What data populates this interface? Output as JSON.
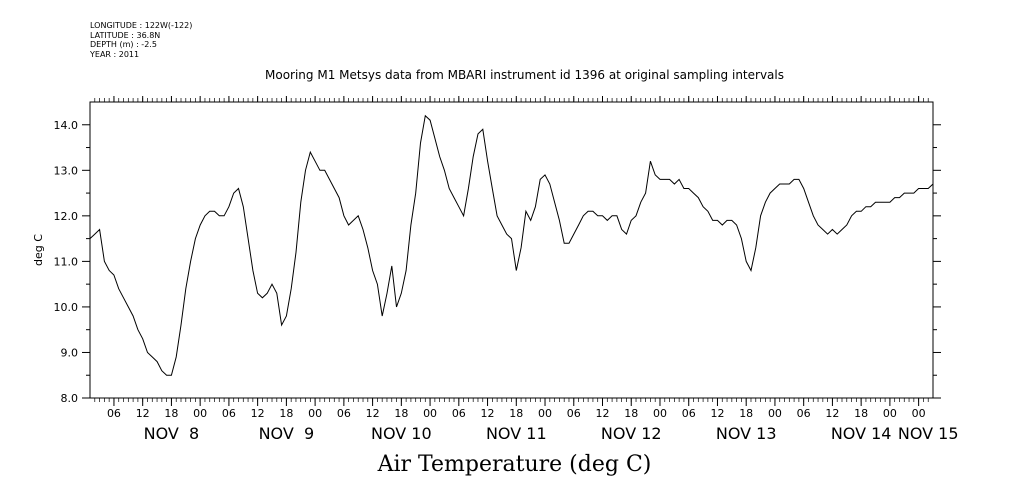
{
  "meta": {
    "longitude": "LONGITUDE : 122W(-122)",
    "latitude": "LATITUDE : 36.8N",
    "depth": "DEPTH (m) : -2.5",
    "year": "YEAR : 2011"
  },
  "chart_data": {
    "type": "line",
    "title": "Mooring M1 Metsys data from MBARI instrument id 1396 at original sampling intervals",
    "xlabel": "Air Temperature (deg C)",
    "ylabel": "deg C",
    "ylim": [
      8.0,
      14.5
    ],
    "yticks": [
      "8.0",
      "9.0",
      "10.0",
      "11.0",
      "12.0",
      "13.0",
      "14.0"
    ],
    "xlim_hours": [
      0,
      176
    ],
    "hour_tick_labels": [
      "06",
      "12",
      "18",
      "00",
      "06",
      "12",
      "18",
      "00",
      "06",
      "12",
      "18",
      "00",
      "06",
      "12",
      "18",
      "00",
      "06",
      "12",
      "18",
      "00",
      "06",
      "12",
      "18",
      "00",
      "06",
      "12",
      "18",
      "00",
      "00"
    ],
    "day_labels": [
      "NOV  8",
      "NOV  9",
      "NOV 10",
      "NOV 11",
      "NOV 12",
      "NOV 13",
      "NOV 14",
      "NOV 15"
    ],
    "grid": false,
    "series": [
      {
        "x": [
          0,
          1,
          2,
          3,
          4,
          5,
          6,
          7,
          8,
          9,
          10,
          11,
          12,
          13,
          14,
          15,
          16,
          17,
          18,
          19,
          20,
          21,
          22,
          23,
          24,
          25,
          26,
          27,
          28,
          29,
          30,
          31,
          32,
          33,
          34,
          35,
          36,
          37,
          38,
          39,
          40,
          41,
          42,
          43,
          44,
          45,
          46,
          47,
          48,
          49,
          50,
          51,
          52,
          53,
          54,
          55,
          56,
          57,
          58,
          59,
          60,
          61,
          62,
          63,
          64,
          65,
          66,
          67,
          68,
          69,
          70,
          71,
          72,
          73,
          74,
          75,
          76,
          77,
          78,
          79,
          80,
          81,
          82,
          83,
          84,
          85,
          86,
          87,
          88,
          89,
          90,
          91,
          92,
          93,
          94,
          95,
          96,
          97,
          98,
          99,
          100,
          101,
          102,
          103,
          104,
          105,
          106,
          107,
          108,
          109,
          110,
          111,
          112,
          113,
          114,
          115,
          116,
          117,
          118,
          119,
          120,
          121,
          122,
          123,
          124,
          125,
          126,
          127,
          128,
          129,
          130,
          131,
          132,
          133,
          134,
          135,
          136,
          137,
          138,
          139,
          140,
          141,
          142,
          143,
          144,
          145,
          146,
          147,
          148,
          149,
          150,
          151,
          152,
          153,
          154,
          155,
          156,
          157,
          158,
          159,
          160,
          161,
          162,
          163,
          164,
          165,
          166,
          167,
          168,
          169,
          170,
          171,
          172,
          173,
          174,
          175,
          176
        ],
        "y": [
          11.5,
          11.6,
          11.7,
          11.0,
          10.8,
          10.7,
          10.4,
          10.2,
          10.0,
          9.8,
          9.5,
          9.3,
          9.0,
          8.9,
          8.8,
          8.6,
          8.5,
          8.5,
          8.9,
          9.6,
          10.4,
          11.0,
          11.5,
          11.8,
          12.0,
          12.1,
          12.1,
          12.0,
          12.0,
          12.2,
          12.5,
          12.6,
          12.2,
          11.5,
          10.8,
          10.3,
          10.2,
          10.3,
          10.5,
          10.3,
          9.6,
          9.8,
          10.4,
          11.2,
          12.3,
          13.0,
          13.4,
          13.2,
          13.0,
          13.0,
          12.8,
          12.6,
          12.4,
          12.0,
          11.8,
          11.9,
          12.0,
          11.7,
          11.3,
          10.8,
          10.5,
          9.8,
          10.3,
          10.9,
          10.0,
          10.3,
          10.8,
          11.8,
          12.5,
          13.6,
          14.2,
          14.1,
          13.7,
          13.3,
          13.0,
          12.6,
          12.4,
          12.2,
          12.0,
          12.6,
          13.3,
          13.8,
          13.9,
          13.2,
          12.6,
          12.0,
          11.8,
          11.6,
          11.5,
          10.8,
          11.3,
          12.1,
          11.9,
          12.2,
          12.8,
          12.9,
          12.7,
          12.3,
          11.9,
          11.4,
          11.4,
          11.6,
          11.8,
          12.0,
          12.1,
          12.1,
          12.0,
          12.0,
          11.9,
          12.0,
          12.0,
          11.7,
          11.6,
          11.9,
          12.0,
          12.3,
          12.5,
          13.2,
          12.9,
          12.8,
          12.8,
          12.8,
          12.7,
          12.8,
          12.6,
          12.6,
          12.5,
          12.4,
          12.2,
          12.1,
          11.9,
          11.9,
          11.8,
          11.9,
          11.9,
          11.8,
          11.5,
          11.0,
          10.8,
          11.3,
          12.0,
          12.3,
          12.5,
          12.6,
          12.7,
          12.7,
          12.7,
          12.8,
          12.8,
          12.6,
          12.3,
          12.0,
          11.8,
          11.7,
          11.6,
          11.7,
          11.6,
          11.7,
          11.8,
          12.0,
          12.1,
          12.1,
          12.2,
          12.2,
          12.3,
          12.3,
          12.3,
          12.3,
          12.4,
          12.4,
          12.5,
          12.5,
          12.5,
          12.6,
          12.6,
          12.6,
          12.7
        ]
      }
    ]
  }
}
